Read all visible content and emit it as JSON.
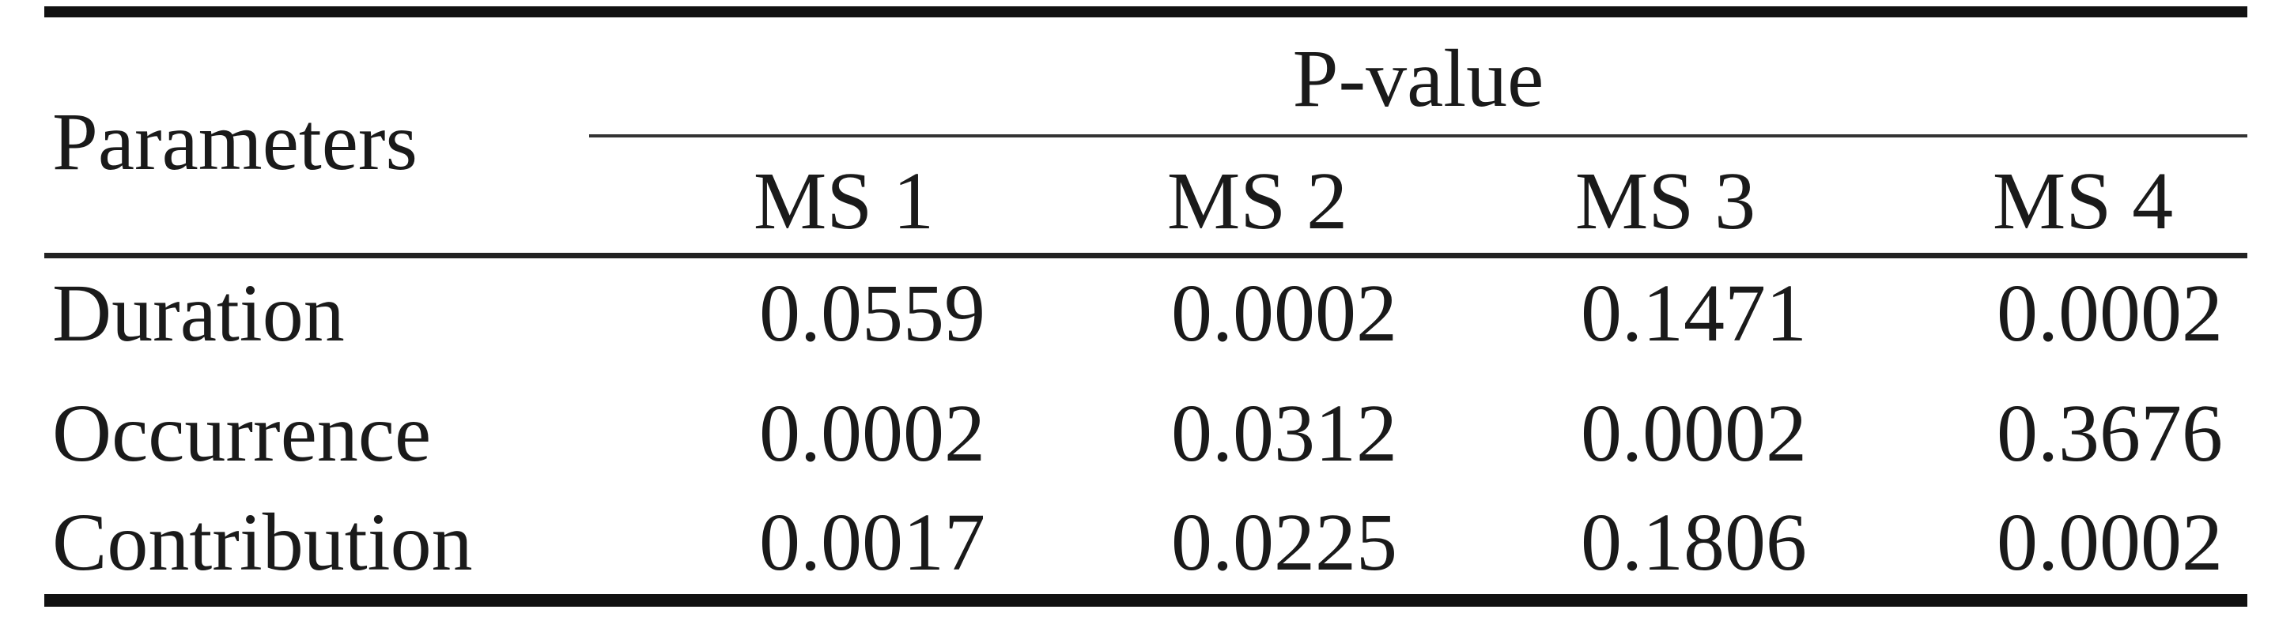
{
  "table": {
    "header": {
      "row_label": "Parameters",
      "group_label": "P-value",
      "columns": [
        "MS 1",
        "MS 2",
        "MS 3",
        "MS 4"
      ]
    },
    "rows": [
      {
        "label": "Duration",
        "values": [
          "0.0559",
          "0.0002",
          "0.1471",
          "0.0002"
        ]
      },
      {
        "label": "Occurrence",
        "values": [
          "0.0002",
          "0.0312",
          "0.0002",
          "0.3676"
        ]
      },
      {
        "label": "Contribution",
        "values": [
          "0.0017",
          "0.0225",
          "0.1806",
          "0.0002"
        ]
      }
    ]
  }
}
